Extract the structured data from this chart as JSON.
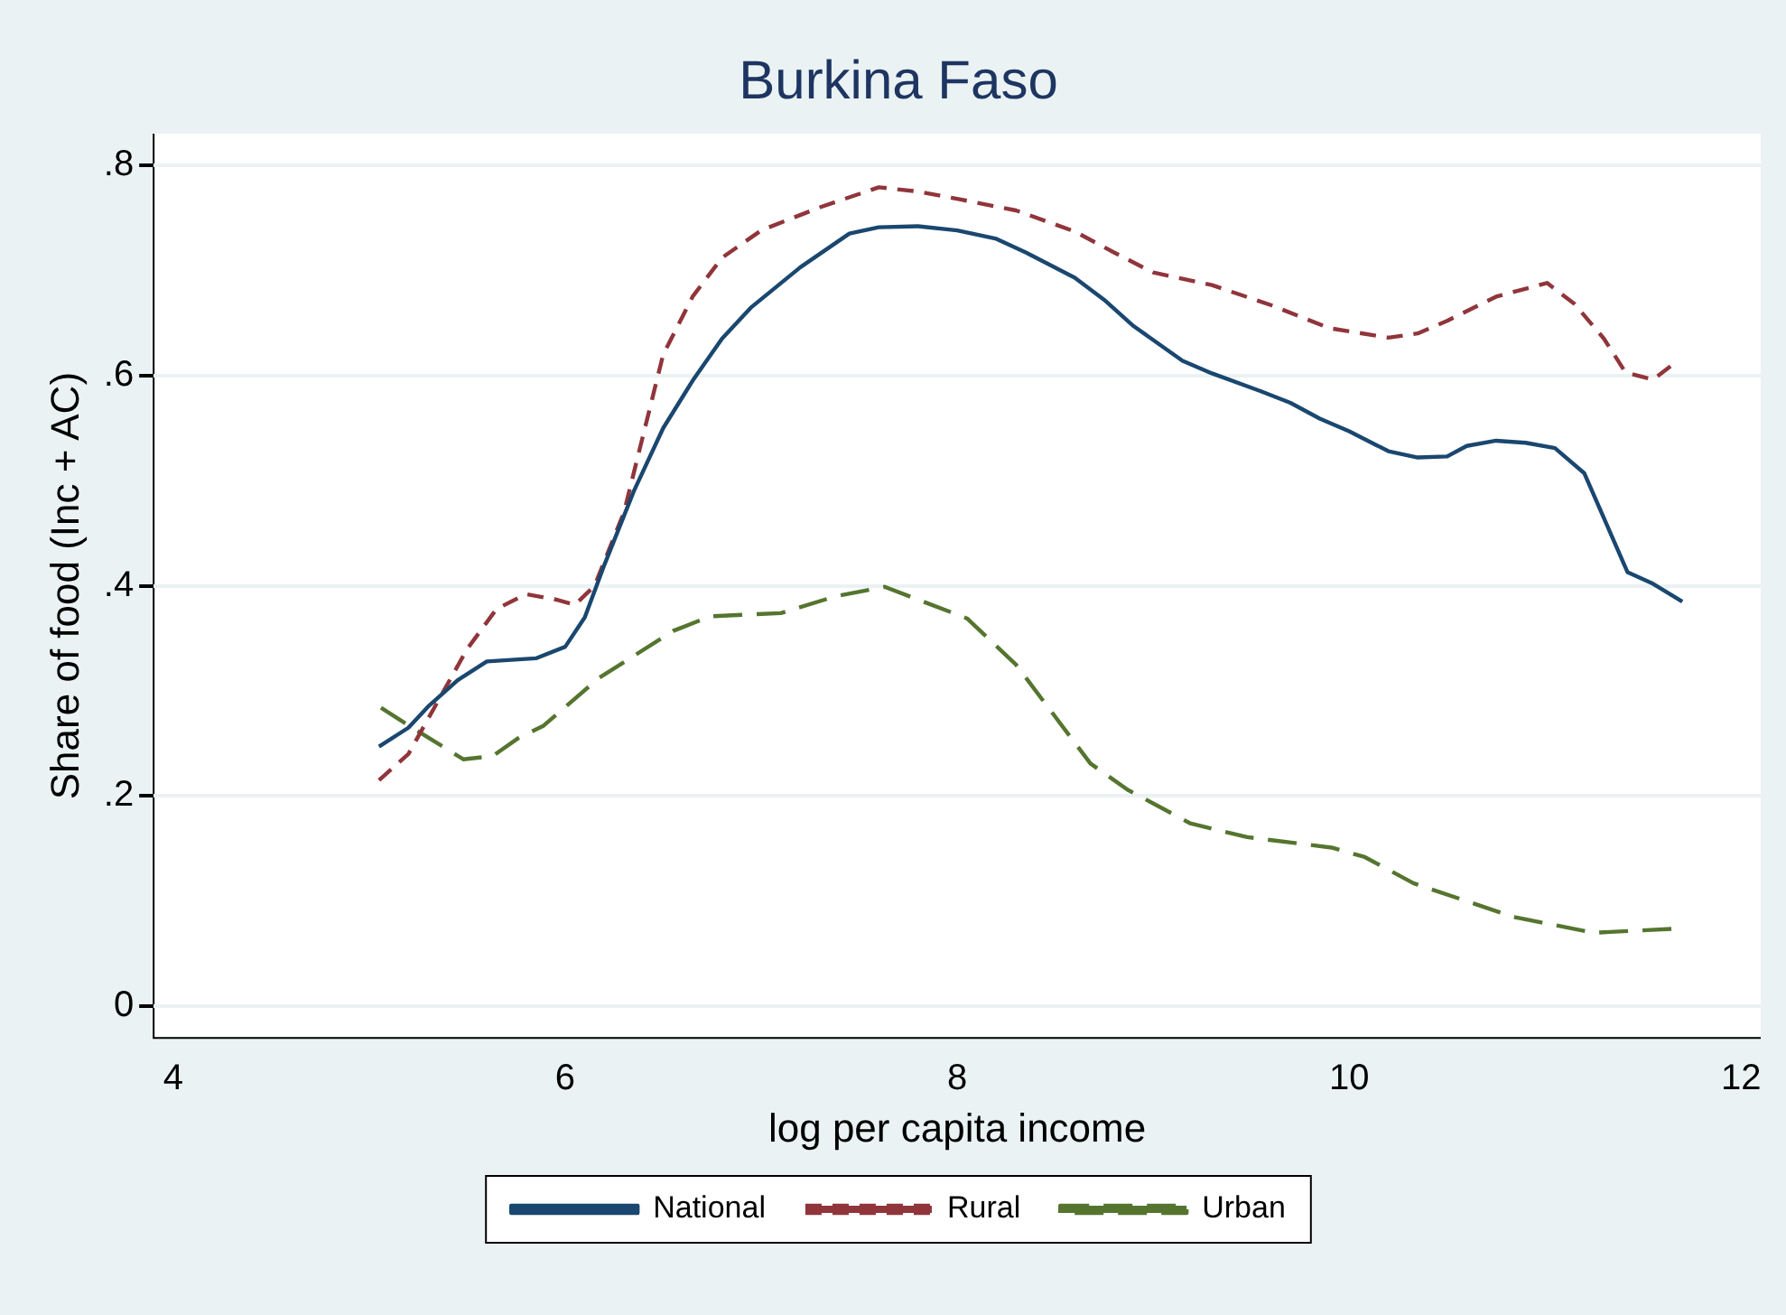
{
  "chart_data": {
    "type": "line",
    "title": "Burkina Faso",
    "xlabel": "log per capita income",
    "ylabel": "Share of food (Inc + AC)",
    "xlim": [
      3.9,
      12.1
    ],
    "xticks": [
      4,
      6,
      8,
      10,
      12
    ],
    "ylim": [
      -0.03,
      0.83
    ],
    "yticks": [
      {
        "value": 0,
        "label": "0"
      },
      {
        "value": 0.2,
        "label": ".2"
      },
      {
        "value": 0.4,
        "label": ".4"
      },
      {
        "value": 0.6,
        "label": ".6"
      },
      {
        "value": 0.8,
        "label": ".8"
      }
    ],
    "grid": "y",
    "legend": "bottom",
    "marker": "none",
    "series": [
      {
        "name": "National",
        "color": "#1a476f",
        "line_style": "solid",
        "x": [
          5.05,
          5.2,
          5.3,
          5.45,
          5.6,
          5.85,
          6.0,
          6.1,
          6.2,
          6.35,
          6.5,
          6.65,
          6.8,
          6.95,
          7.2,
          7.45,
          7.6,
          7.8,
          8.0,
          8.2,
          8.35,
          8.6,
          8.75,
          8.9,
          9.15,
          9.3,
          9.55,
          9.7,
          9.85,
          10.0,
          10.2,
          10.35,
          10.5,
          10.6,
          10.75,
          10.9,
          11.05,
          11.2,
          11.42,
          11.55,
          11.7
        ],
        "values": [
          0.247,
          0.265,
          0.285,
          0.31,
          0.328,
          0.331,
          0.342,
          0.37,
          0.42,
          0.49,
          0.55,
          0.595,
          0.635,
          0.665,
          0.703,
          0.735,
          0.741,
          0.742,
          0.738,
          0.73,
          0.717,
          0.693,
          0.672,
          0.647,
          0.614,
          0.602,
          0.585,
          0.574,
          0.559,
          0.547,
          0.528,
          0.522,
          0.523,
          0.533,
          0.538,
          0.536,
          0.531,
          0.507,
          0.413,
          0.402,
          0.385
        ]
      },
      {
        "name": "Rural",
        "color": "#90353b",
        "line_style": "dashed",
        "x": [
          5.05,
          5.2,
          5.35,
          5.5,
          5.65,
          5.8,
          5.95,
          6.05,
          6.15,
          6.3,
          6.5,
          6.65,
          6.8,
          7.0,
          7.3,
          7.6,
          7.8,
          8.0,
          8.3,
          8.6,
          8.8,
          9.0,
          9.3,
          9.6,
          9.9,
          10.2,
          10.35,
          10.5,
          10.75,
          11.01,
          11.15,
          11.3,
          11.41,
          11.55,
          11.67
        ],
        "values": [
          0.215,
          0.24,
          0.29,
          0.34,
          0.378,
          0.392,
          0.387,
          0.382,
          0.4,
          0.47,
          0.62,
          0.675,
          0.712,
          0.738,
          0.76,
          0.779,
          0.775,
          0.768,
          0.757,
          0.737,
          0.717,
          0.698,
          0.686,
          0.667,
          0.645,
          0.636,
          0.64,
          0.652,
          0.675,
          0.688,
          0.668,
          0.635,
          0.603,
          0.596,
          0.613
        ]
      },
      {
        "name": "Urban",
        "color": "#55752f",
        "line_style": "longdash",
        "x": [
          5.06,
          5.22,
          5.48,
          5.63,
          5.76,
          5.89,
          6.17,
          6.55,
          6.74,
          7.1,
          7.38,
          7.63,
          8.05,
          8.3,
          8.68,
          8.87,
          9.19,
          9.48,
          9.91,
          10.08,
          10.33,
          10.84,
          11.25,
          11.68
        ],
        "values": [
          0.284,
          0.265,
          0.235,
          0.238,
          0.255,
          0.267,
          0.312,
          0.357,
          0.371,
          0.374,
          0.39,
          0.399,
          0.369,
          0.325,
          0.231,
          0.206,
          0.174,
          0.161,
          0.151,
          0.142,
          0.117,
          0.085,
          0.07,
          0.074
        ]
      }
    ]
  }
}
